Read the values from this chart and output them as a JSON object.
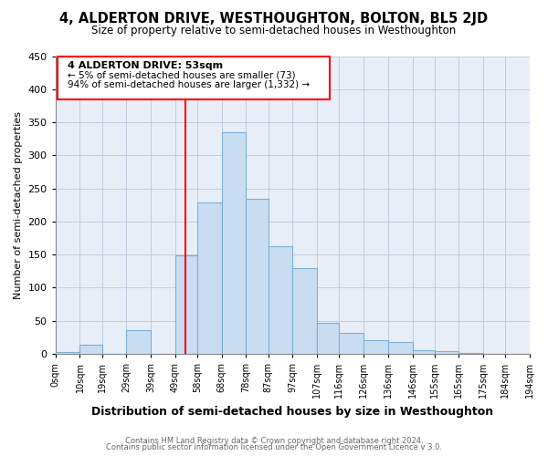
{
  "title": "4, ALDERTON DRIVE, WESTHOUGHTON, BOLTON, BL5 2JD",
  "subtitle": "Size of property relative to semi-detached houses in Westhoughton",
  "xlabel": "Distribution of semi-detached houses by size in Westhoughton",
  "ylabel": "Number of semi-detached properties",
  "bin_edges": [
    0,
    10,
    19,
    29,
    39,
    49,
    58,
    68,
    78,
    87,
    97,
    107,
    116,
    126,
    136,
    146,
    155,
    165,
    175,
    184,
    194
  ],
  "bar_heights": [
    2,
    14,
    0,
    36,
    0,
    148,
    228,
    335,
    234,
    163,
    130,
    47,
    32,
    21,
    18,
    5,
    4,
    1,
    0,
    0
  ],
  "bar_color": "#c9ddf2",
  "bar_edge_color": "#7bafd4",
  "tick_labels": [
    "0sqm",
    "10sqm",
    "19sqm",
    "29sqm",
    "39sqm",
    "49sqm",
    "58sqm",
    "68sqm",
    "78sqm",
    "87sqm",
    "97sqm",
    "107sqm",
    "116sqm",
    "126sqm",
    "136sqm",
    "146sqm",
    "155sqm",
    "165sqm",
    "175sqm",
    "184sqm",
    "194sqm"
  ],
  "ylim": [
    0,
    450
  ],
  "yticks": [
    0,
    50,
    100,
    150,
    200,
    250,
    300,
    350,
    400,
    450
  ],
  "red_line_x": 53,
  "annotation_title": "4 ALDERTON DRIVE: 53sqm",
  "annotation_line1": "← 5% of semi-detached houses are smaller (73)",
  "annotation_line2": "94% of semi-detached houses are larger (1,332) →",
  "footer_line1": "Contains HM Land Registry data © Crown copyright and database right 2024.",
  "footer_line2": "Contains public sector information licensed under the Open Government Licence v 3.0.",
  "background_color": "#ffffff",
  "plot_bg_color": "#e8eef7",
  "grid_color": "#c0cce0"
}
